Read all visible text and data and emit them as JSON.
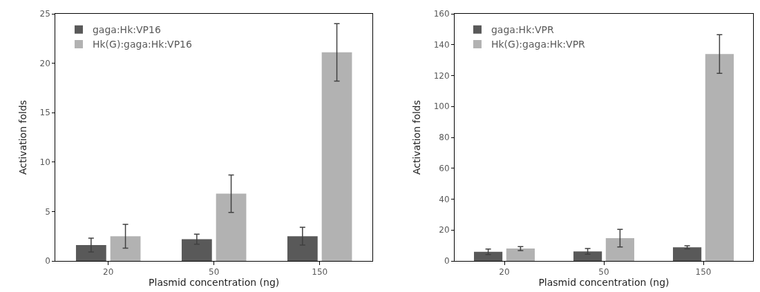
{
  "chart_data": [
    {
      "type": "bar",
      "xlabel": "Plasmid concentration (ng)",
      "ylabel": "Activation folds",
      "categories": [
        "20",
        "50",
        "150"
      ],
      "ylim": [
        0,
        25
      ],
      "yticks": [
        0,
        5,
        10,
        15,
        20,
        25
      ],
      "legend": "top left",
      "series": [
        {
          "name": "gaga:Hk:VP16",
          "color": "#595959",
          "values": [
            1.6,
            2.2,
            2.5
          ],
          "errors": [
            0.7,
            0.5,
            0.9
          ]
        },
        {
          "name": "Hk(G):gaga:Hk:VP16",
          "color": "#b2b2b2",
          "values": [
            2.5,
            6.8,
            21.1
          ],
          "errors": [
            1.2,
            1.9,
            2.9
          ]
        }
      ]
    },
    {
      "type": "bar",
      "xlabel": "Plasmid concentration (ng)",
      "ylabel": "Activation folds",
      "categories": [
        "20",
        "50",
        "150"
      ],
      "ylim": [
        0,
        160
      ],
      "yticks": [
        0,
        20,
        40,
        60,
        80,
        100,
        120,
        140,
        160
      ],
      "legend": "top left",
      "series": [
        {
          "name": "gaga:Hk:VPR",
          "color": "#595959",
          "values": [
            5.9,
            6.2,
            8.8
          ],
          "errors": [
            1.8,
            1.8,
            1.0
          ]
        },
        {
          "name": "Hk(G):gaga:Hk:VPR",
          "color": "#b2b2b2",
          "values": [
            8.0,
            14.8,
            134
          ],
          "errors": [
            1.3,
            5.7,
            12.5
          ]
        }
      ]
    }
  ]
}
